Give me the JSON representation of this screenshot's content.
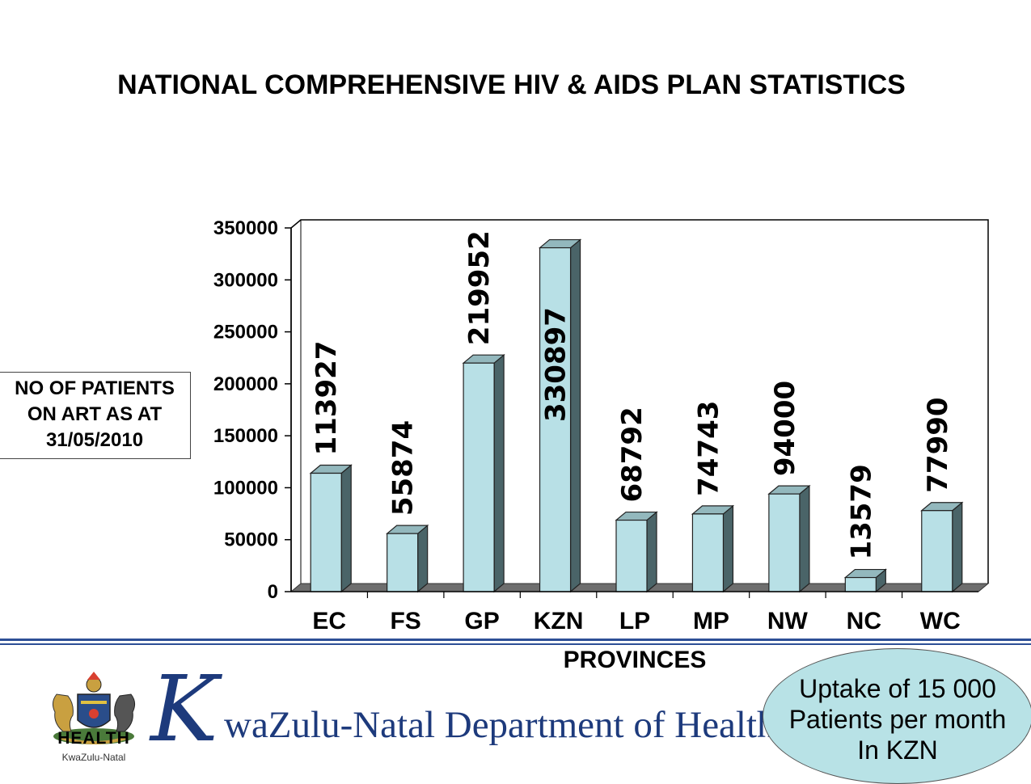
{
  "title": "NATIONAL COMPREHENSIVE HIV & AIDS PLAN STATISTICS",
  "y_axis_box": [
    "NO OF PATIENTS",
    "ON ART AS AT",
    "31/05/2010"
  ],
  "callout": [
    "Uptake of 15 000",
    "Patients per month",
    "In KZN"
  ],
  "footer": {
    "logo_title": "HEALTH",
    "logo_subtitle": "KwaZulu-Natal",
    "dept_initial": "K",
    "dept_rest": "waZulu-Natal Department of Health"
  },
  "colors": {
    "bar_face": "#b8e0e6",
    "bar_side": "#4a6468",
    "bar_top": "#93b8bd",
    "floor": "#6e6e6e",
    "dept_text": "#1d3a7c",
    "callout_fill": "#b8e2e6"
  },
  "chart_data": {
    "type": "bar",
    "title": "NATIONAL COMPREHENSIVE HIV & AIDS PLAN STATISTICS",
    "xlabel": "PROVINCES",
    "ylabel": "NO OF PATIENTS ON ART AS AT 31/05/2010",
    "categories": [
      "EC",
      "FS",
      "GP",
      "KZN",
      "LP",
      "MP",
      "NW",
      "NC",
      "WC"
    ],
    "values": [
      113927,
      55874,
      219952,
      330897,
      68792,
      74743,
      94000,
      13579,
      77990
    ],
    "data_labels": [
      "113927",
      "55874",
      "219952",
      "330897",
      "68792",
      "74743",
      "94000",
      "13579",
      "77990"
    ],
    "ylim": [
      0,
      350000
    ],
    "yticks": [
      0,
      50000,
      100000,
      150000,
      200000,
      250000,
      300000,
      350000
    ],
    "ytick_labels": [
      "0",
      "50000",
      "100000",
      "150000",
      "200000",
      "250000",
      "300000",
      "350000"
    ],
    "grid": false,
    "legend": "none"
  }
}
